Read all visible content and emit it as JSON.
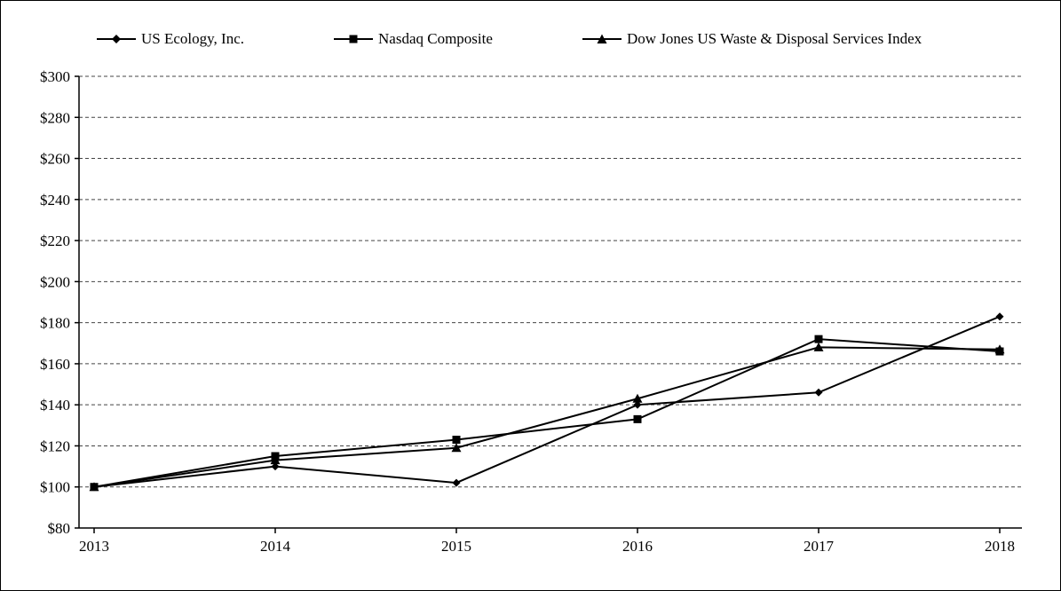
{
  "chart_data": {
    "type": "line",
    "title": "",
    "xlabel": "",
    "ylabel": "",
    "x_tick_labels": [
      "2013",
      "2014",
      "2015",
      "2016",
      "2017",
      "2018"
    ],
    "y_ticks": [
      80,
      100,
      120,
      140,
      160,
      180,
      200,
      220,
      240,
      260,
      280,
      300
    ],
    "y_tick_prefix": "$",
    "ylim": [
      80,
      300
    ],
    "grid": "dashed-horizontal",
    "legend_position": "top",
    "line_color": "#000000",
    "categories": [
      "2013",
      "2014",
      "2015",
      "2016",
      "2017",
      "2018"
    ],
    "series": [
      {
        "name": "US Ecology, Inc.",
        "marker": "diamond",
        "values": [
          100,
          110,
          102,
          140,
          146,
          183
        ]
      },
      {
        "name": "Nasdaq Composite",
        "marker": "square",
        "values": [
          100,
          115,
          123,
          133,
          172,
          166
        ]
      },
      {
        "name": "Dow Jones US Waste & Disposal Services Index",
        "marker": "triangle",
        "values": [
          100,
          113,
          119,
          143,
          168,
          167
        ]
      }
    ]
  }
}
